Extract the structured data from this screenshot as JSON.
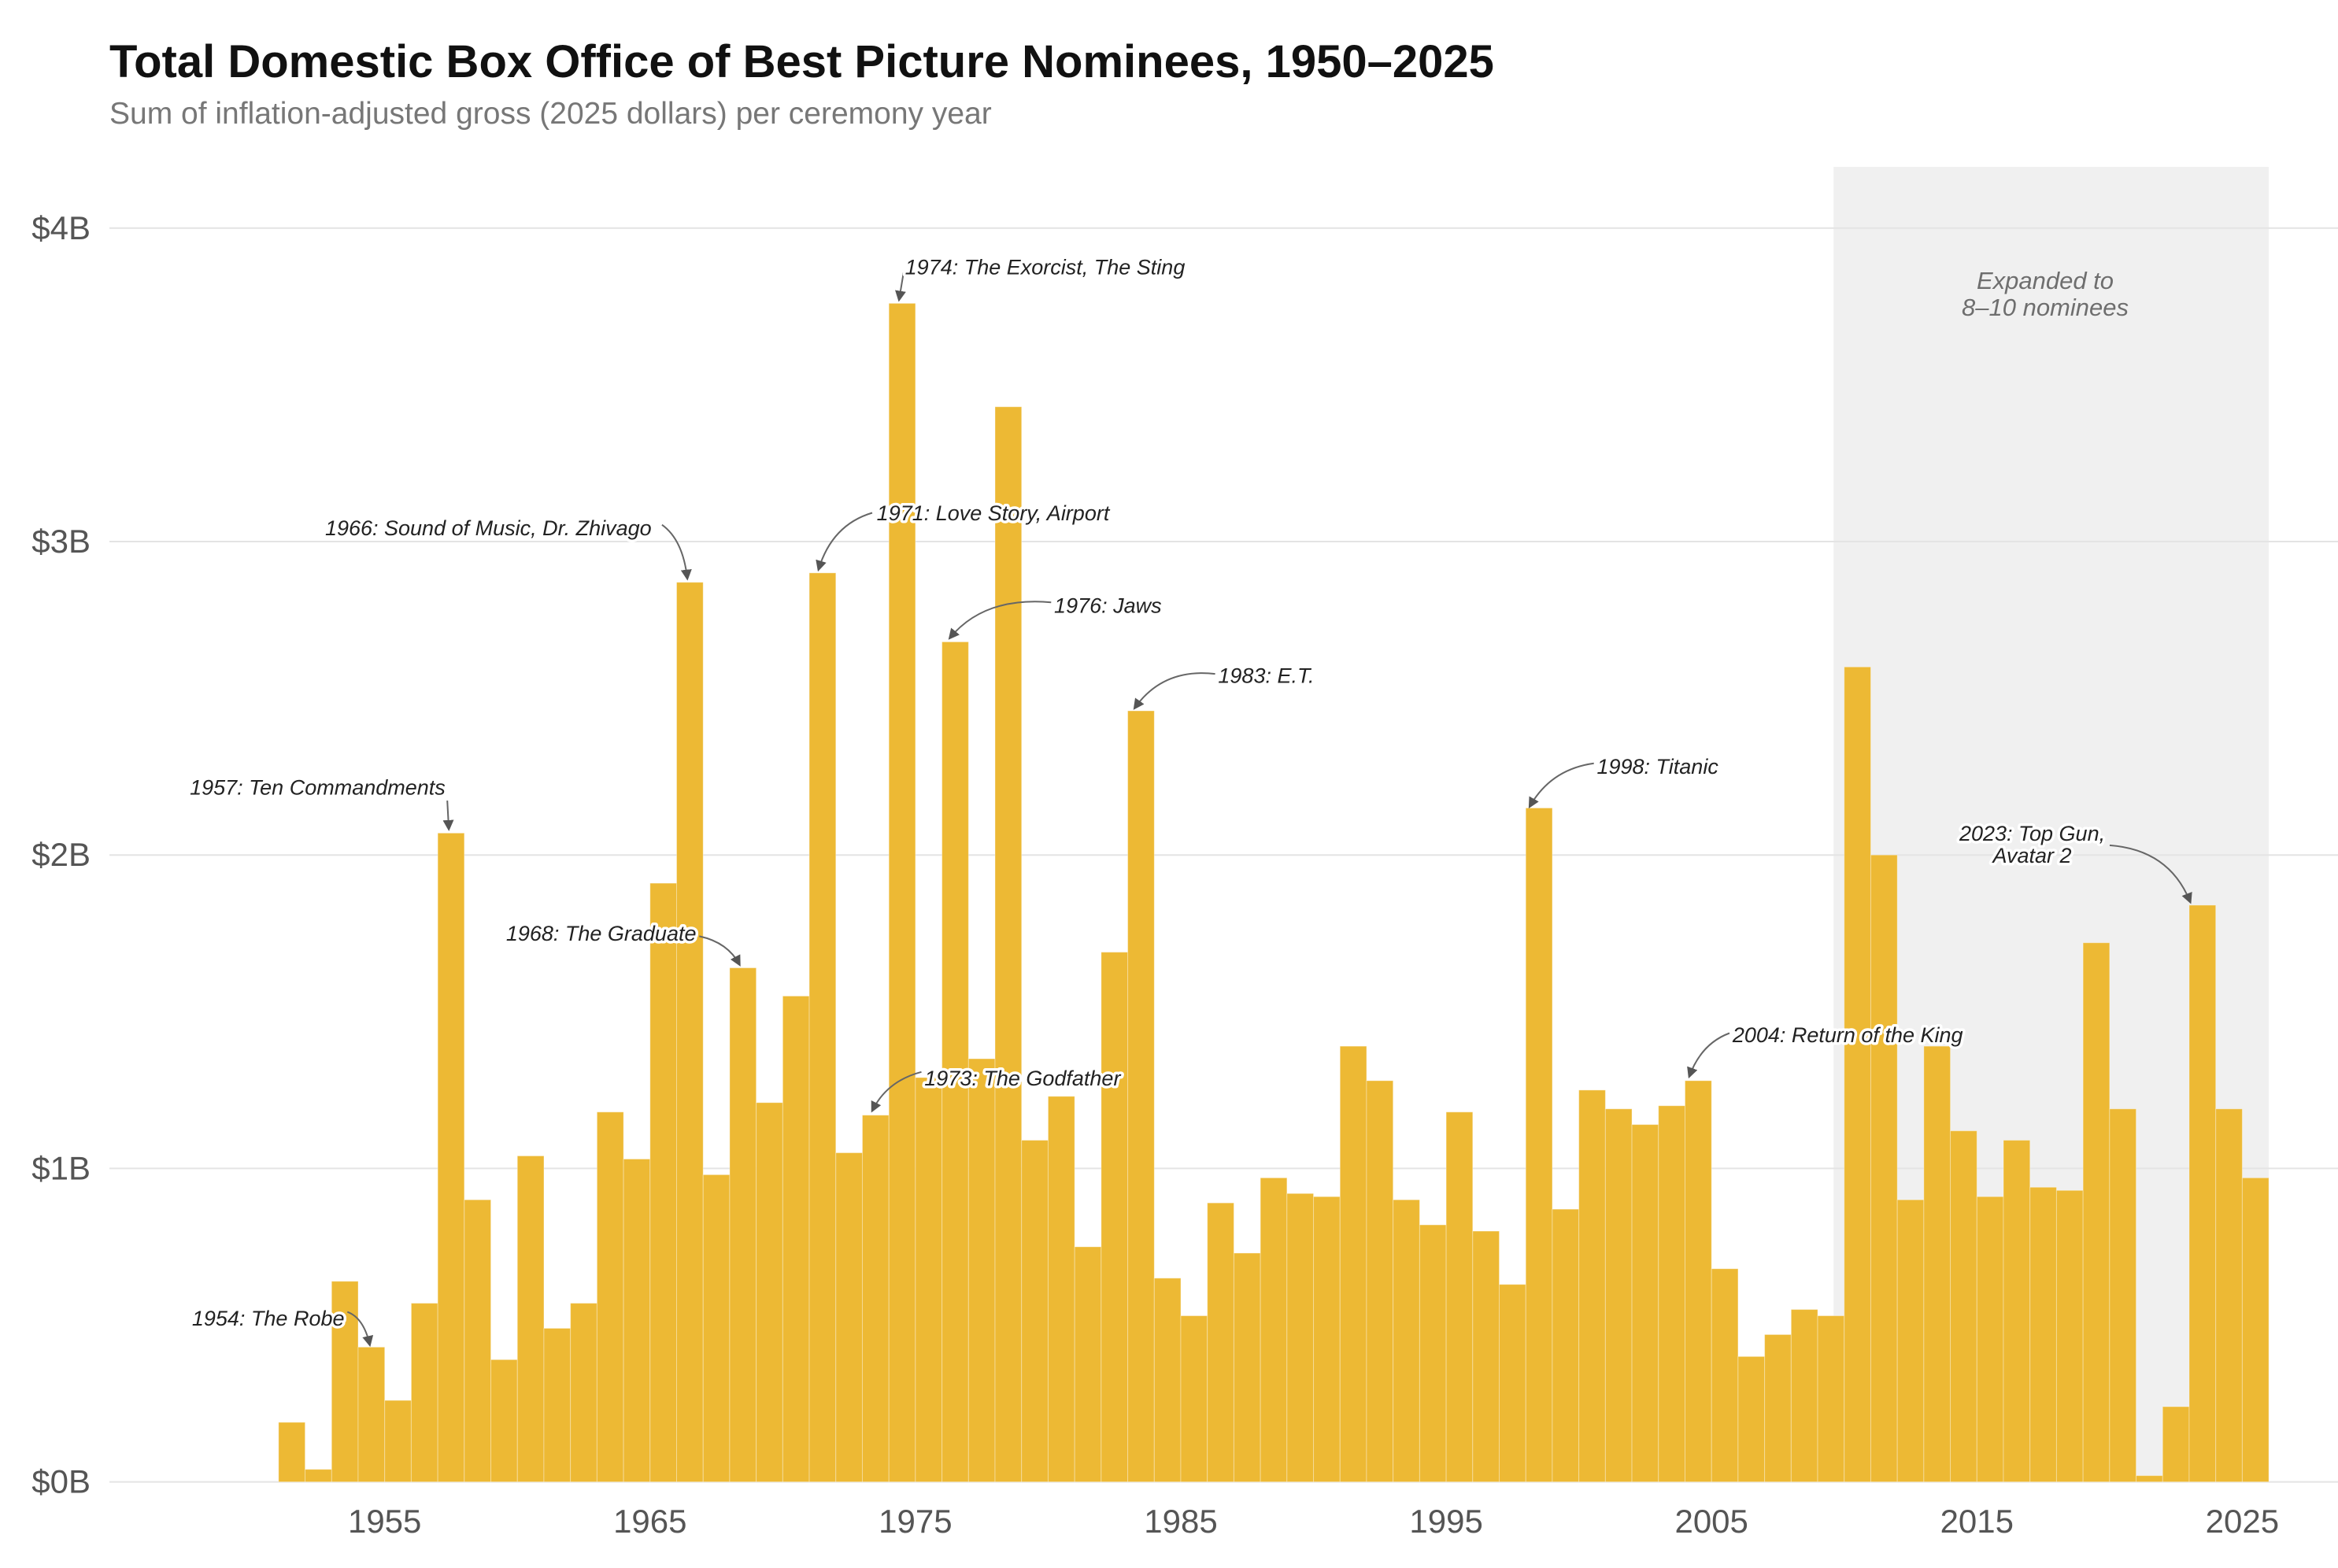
{
  "chart_data": {
    "type": "bar",
    "title": "Total Domestic Box Office of Best Picture Nominees, 1950–2025",
    "subtitle": "Sum of inflation-adjusted gross (2025 dollars) per ceremony year",
    "xlabel": "",
    "ylabel": "",
    "unit": "billions of 2025 dollars",
    "ylim": [
      0,
      4
    ],
    "y_ticks": [
      0,
      1,
      2,
      3,
      4
    ],
    "y_tick_labels": [
      "$0B",
      "$1B",
      "$2B",
      "$3B",
      "$4B"
    ],
    "x_ticks": [
      1955,
      1965,
      1975,
      1985,
      1995,
      2005,
      2015,
      2025
    ],
    "x_tick_labels": [
      "1955",
      "1965",
      "1975",
      "1985",
      "1995",
      "2005",
      "2015",
      "2025"
    ],
    "grid": "horizontal",
    "bar_color": "#EDB934",
    "years": [
      1951,
      1952,
      1953,
      1954,
      1955,
      1956,
      1957,
      1958,
      1959,
      1960,
      1961,
      1962,
      1963,
      1964,
      1965,
      1966,
      1967,
      1968,
      1969,
      1970,
      1971,
      1972,
      1973,
      1974,
      1975,
      1976,
      1977,
      1978,
      1979,
      1980,
      1981,
      1982,
      1983,
      1984,
      1985,
      1986,
      1987,
      1988,
      1989,
      1990,
      1991,
      1992,
      1993,
      1994,
      1995,
      1996,
      1997,
      1998,
      1999,
      2000,
      2001,
      2002,
      2003,
      2004,
      2005,
      2006,
      2007,
      2008,
      2009,
      2010,
      2011,
      2012,
      2013,
      2014,
      2015,
      2016,
      2017,
      2018,
      2019,
      2020,
      2021,
      2022,
      2023,
      2024,
      2025
    ],
    "values": [
      0.19,
      0.04,
      0.64,
      0.43,
      0.26,
      0.57,
      2.07,
      0.9,
      0.39,
      1.04,
      0.49,
      0.57,
      1.18,
      1.03,
      1.91,
      2.87,
      0.98,
      1.64,
      1.21,
      1.55,
      2.9,
      1.05,
      1.17,
      3.76,
      1.29,
      2.68,
      1.35,
      3.43,
      1.09,
      1.23,
      0.75,
      1.69,
      2.46,
      0.65,
      0.53,
      0.89,
      0.73,
      0.97,
      0.92,
      0.91,
      1.39,
      1.28,
      0.9,
      0.82,
      1.18,
      0.8,
      0.63,
      2.15,
      0.87,
      1.25,
      1.19,
      1.14,
      1.2,
      1.28,
      0.68,
      0.4,
      0.47,
      0.55,
      0.53,
      2.6,
      2.0,
      0.9,
      1.39,
      1.12,
      0.91,
      1.09,
      0.94,
      0.93,
      1.72,
      1.19,
      0.02,
      0.24,
      1.84,
      1.19,
      0.97
    ],
    "highlight": {
      "from": 2009.6,
      "to": 2026,
      "color": "#F0F0F0",
      "label_lines": [
        "Expanded to",
        "8–10 nominees"
      ]
    },
    "annotations": [
      {
        "year": 1954,
        "lines": [
          "1954: The Robe"
        ]
      },
      {
        "year": 1957,
        "lines": [
          "1957: Ten Commandments"
        ]
      },
      {
        "year": 1966,
        "lines": [
          "1966: Sound of Music, Dr. Zhivago"
        ]
      },
      {
        "year": 1968,
        "lines": [
          "1968: The Graduate"
        ]
      },
      {
        "year": 1971,
        "lines": [
          "1971: Love Story, Airport"
        ]
      },
      {
        "year": 1973,
        "lines": [
          "1973: The Godfather"
        ]
      },
      {
        "year": 1974,
        "lines": [
          "1974: The Exorcist, The Sting"
        ]
      },
      {
        "year": 1976,
        "lines": [
          "1976: Jaws"
        ]
      },
      {
        "year": 1983,
        "lines": [
          "1983: E.T."
        ]
      },
      {
        "year": 1998,
        "lines": [
          "1998: Titanic"
        ]
      },
      {
        "year": 2004,
        "lines": [
          "2004: Return of the King"
        ]
      },
      {
        "year": 2023,
        "lines": [
          "2023: Top Gun,",
          "Avatar 2"
        ]
      }
    ]
  }
}
